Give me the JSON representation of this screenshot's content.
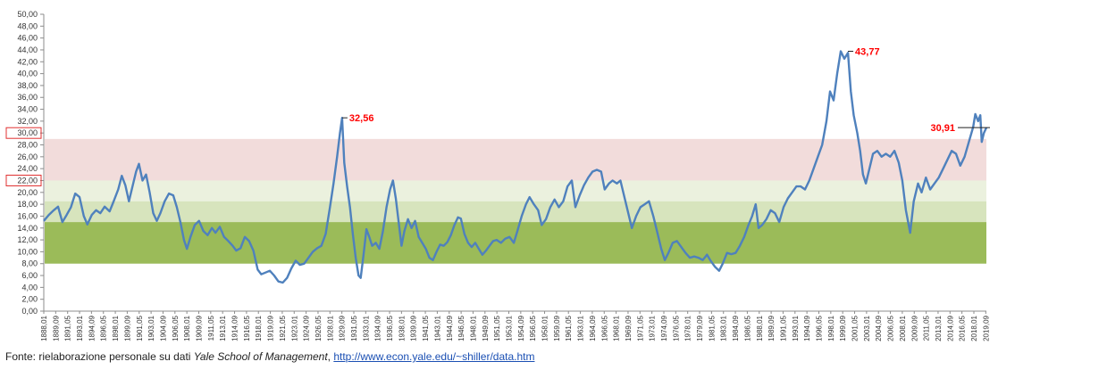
{
  "chart_data": {
    "type": "line",
    "title": "",
    "xlabel": "",
    "ylabel": "",
    "ylim": [
      0,
      50
    ],
    "y_ticks": [
      "0,00",
      "2,00",
      "4,00",
      "6,00",
      "8,00",
      "10,00",
      "12,00",
      "14,00",
      "16,00",
      "18,00",
      "20,00",
      "22,00",
      "24,00",
      "26,00",
      "28,00",
      "30,00",
      "32,00",
      "34,00",
      "36,00",
      "38,00",
      "40,00",
      "42,00",
      "44,00",
      "46,00",
      "48,00",
      "50,00"
    ],
    "boxed_ticks": [
      "30,00",
      "22,00"
    ],
    "x_ticks": [
      "1888,01",
      "1889,09",
      "1891,05",
      "1893,01",
      "1894,09",
      "1896,05",
      "1898,01",
      "1899,09",
      "1901,05",
      "1903,01",
      "1904,09",
      "1906,05",
      "1908,01",
      "1909,09",
      "1911,05",
      "1913,01",
      "1914,09",
      "1916,05",
      "1918,01",
      "1919,09",
      "1921,05",
      "1923,01",
      "1924,09",
      "1926,05",
      "1928,01",
      "1929,09",
      "1931,05",
      "1933,01",
      "1934,09",
      "1936,05",
      "1938,01",
      "1939,09",
      "1941,05",
      "1943,01",
      "1944,09",
      "1946,05",
      "1948,01",
      "1949,09",
      "1951,05",
      "1953,01",
      "1954,09",
      "1956,05",
      "1958,01",
      "1959,09",
      "1961,05",
      "1963,01",
      "1964,09",
      "1966,05",
      "1968,01",
      "1969,09",
      "1971,05",
      "1973,01",
      "1974,09",
      "1976,05",
      "1978,01",
      "1979,09",
      "1981,05",
      "1983,01",
      "1984,09",
      "1986,05",
      "1988,01",
      "1989,09",
      "1991,05",
      "1993,01",
      "1994,09",
      "1996,05",
      "1998,01",
      "1999,09",
      "2001,05",
      "2003,01",
      "2004,09",
      "2006,05",
      "2008,01",
      "2009,09",
      "2011,05",
      "2013,01",
      "2014,09",
      "2016,05",
      "2018,01",
      "2019,09"
    ],
    "xlim": [
      1888.0,
      2019.75
    ],
    "bands": [
      {
        "from": 22,
        "to": 29,
        "color": "#f2dcdb"
      },
      {
        "from": 18.5,
        "to": 22,
        "color": "#ebf1de"
      },
      {
        "from": 15,
        "to": 18.5,
        "color": "#d7e4bd"
      },
      {
        "from": 8,
        "to": 15,
        "color": "#9bbb59"
      }
    ],
    "series": [
      {
        "color": "#4f81bd",
        "points": [
          [
            1888.0,
            15.2
          ],
          [
            1888.7,
            16.2
          ],
          [
            1889.4,
            17.0
          ],
          [
            1890.0,
            17.6
          ],
          [
            1890.6,
            15.0
          ],
          [
            1891.2,
            16.2
          ],
          [
            1891.8,
            17.5
          ],
          [
            1892.4,
            19.8
          ],
          [
            1893.0,
            19.2
          ],
          [
            1893.6,
            16.0
          ],
          [
            1894.1,
            14.6
          ],
          [
            1894.7,
            16.2
          ],
          [
            1895.3,
            17.0
          ],
          [
            1895.9,
            16.5
          ],
          [
            1896.5,
            17.6
          ],
          [
            1897.2,
            16.8
          ],
          [
            1897.8,
            18.6
          ],
          [
            1898.4,
            20.5
          ],
          [
            1898.9,
            22.8
          ],
          [
            1899.4,
            21.2
          ],
          [
            1899.9,
            18.5
          ],
          [
            1900.4,
            21.0
          ],
          [
            1900.9,
            23.5
          ],
          [
            1901.3,
            24.8
          ],
          [
            1901.8,
            22.0
          ],
          [
            1902.3,
            23.0
          ],
          [
            1902.8,
            20.0
          ],
          [
            1903.3,
            16.5
          ],
          [
            1903.8,
            15.2
          ],
          [
            1904.3,
            16.5
          ],
          [
            1904.9,
            18.5
          ],
          [
            1905.5,
            19.8
          ],
          [
            1906.1,
            19.5
          ],
          [
            1906.6,
            17.5
          ],
          [
            1907.1,
            15.0
          ],
          [
            1907.6,
            12.0
          ],
          [
            1908.0,
            10.5
          ],
          [
            1908.5,
            12.5
          ],
          [
            1909.1,
            14.5
          ],
          [
            1909.7,
            15.2
          ],
          [
            1910.3,
            13.5
          ],
          [
            1910.9,
            12.8
          ],
          [
            1911.5,
            14.0
          ],
          [
            1912.0,
            13.2
          ],
          [
            1912.6,
            14.2
          ],
          [
            1913.2,
            12.5
          ],
          [
            1913.8,
            11.8
          ],
          [
            1914.4,
            11.0
          ],
          [
            1914.9,
            10.2
          ],
          [
            1915.5,
            10.6
          ],
          [
            1916.1,
            12.5
          ],
          [
            1916.7,
            11.8
          ],
          [
            1917.3,
            10.2
          ],
          [
            1917.9,
            7.0
          ],
          [
            1918.4,
            6.2
          ],
          [
            1919.0,
            6.5
          ],
          [
            1919.6,
            6.8
          ],
          [
            1920.2,
            6.0
          ],
          [
            1920.8,
            5.0
          ],
          [
            1921.4,
            4.8
          ],
          [
            1922.0,
            5.6
          ],
          [
            1922.6,
            7.2
          ],
          [
            1923.2,
            8.5
          ],
          [
            1923.8,
            7.8
          ],
          [
            1924.4,
            8.0
          ],
          [
            1925.0,
            9.0
          ],
          [
            1925.6,
            10.0
          ],
          [
            1926.2,
            10.6
          ],
          [
            1926.8,
            11.0
          ],
          [
            1927.4,
            13.0
          ],
          [
            1928.0,
            17.5
          ],
          [
            1928.5,
            21.5
          ],
          [
            1929.0,
            26.0
          ],
          [
            1929.4,
            30.0
          ],
          [
            1929.7,
            32.56
          ],
          [
            1930.0,
            25.0
          ],
          [
            1930.4,
            21.0
          ],
          [
            1930.8,
            17.5
          ],
          [
            1931.2,
            13.0
          ],
          [
            1931.6,
            9.0
          ],
          [
            1932.0,
            6.0
          ],
          [
            1932.3,
            5.6
          ],
          [
            1932.7,
            9.5
          ],
          [
            1933.1,
            13.8
          ],
          [
            1933.5,
            12.5
          ],
          [
            1933.9,
            11.0
          ],
          [
            1934.4,
            11.5
          ],
          [
            1934.9,
            10.5
          ],
          [
            1935.4,
            13.5
          ],
          [
            1935.9,
            17.5
          ],
          [
            1936.4,
            20.5
          ],
          [
            1936.8,
            22.0
          ],
          [
            1937.2,
            19.0
          ],
          [
            1937.6,
            15.0
          ],
          [
            1938.0,
            11.0
          ],
          [
            1938.4,
            13.5
          ],
          [
            1938.9,
            15.5
          ],
          [
            1939.4,
            14.0
          ],
          [
            1939.9,
            15.2
          ],
          [
            1940.4,
            12.5
          ],
          [
            1940.9,
            11.5
          ],
          [
            1941.4,
            10.5
          ],
          [
            1941.9,
            9.0
          ],
          [
            1942.4,
            8.6
          ],
          [
            1942.9,
            10.0
          ],
          [
            1943.4,
            11.2
          ],
          [
            1943.9,
            11.0
          ],
          [
            1944.4,
            11.6
          ],
          [
            1944.9,
            12.8
          ],
          [
            1945.4,
            14.5
          ],
          [
            1945.9,
            15.8
          ],
          [
            1946.3,
            15.6
          ],
          [
            1946.8,
            13.0
          ],
          [
            1947.3,
            11.5
          ],
          [
            1947.8,
            10.8
          ],
          [
            1948.3,
            11.5
          ],
          [
            1948.8,
            10.5
          ],
          [
            1949.3,
            9.5
          ],
          [
            1949.8,
            10.2
          ],
          [
            1950.3,
            11.0
          ],
          [
            1950.8,
            11.8
          ],
          [
            1951.3,
            12.0
          ],
          [
            1951.9,
            11.5
          ],
          [
            1952.5,
            12.2
          ],
          [
            1953.1,
            12.5
          ],
          [
            1953.7,
            11.5
          ],
          [
            1954.2,
            13.5
          ],
          [
            1954.8,
            16.0
          ],
          [
            1955.4,
            18.0
          ],
          [
            1955.9,
            19.2
          ],
          [
            1956.5,
            18.0
          ],
          [
            1957.1,
            17.0
          ],
          [
            1957.6,
            14.5
          ],
          [
            1958.2,
            15.5
          ],
          [
            1958.8,
            17.5
          ],
          [
            1959.4,
            18.8
          ],
          [
            1960.0,
            17.5
          ],
          [
            1960.6,
            18.5
          ],
          [
            1961.2,
            21.0
          ],
          [
            1961.8,
            22.0
          ],
          [
            1962.3,
            17.5
          ],
          [
            1962.9,
            19.5
          ],
          [
            1963.5,
            21.2
          ],
          [
            1964.1,
            22.5
          ],
          [
            1964.7,
            23.5
          ],
          [
            1965.3,
            23.8
          ],
          [
            1965.9,
            23.5
          ],
          [
            1966.4,
            20.5
          ],
          [
            1967.0,
            21.5
          ],
          [
            1967.5,
            22.0
          ],
          [
            1968.1,
            21.5
          ],
          [
            1968.6,
            22.0
          ],
          [
            1969.2,
            19.0
          ],
          [
            1969.7,
            16.5
          ],
          [
            1970.2,
            14.0
          ],
          [
            1970.8,
            16.0
          ],
          [
            1971.4,
            17.5
          ],
          [
            1972.0,
            18.0
          ],
          [
            1972.6,
            18.5
          ],
          [
            1973.2,
            16.0
          ],
          [
            1973.8,
            13.0
          ],
          [
            1974.3,
            10.5
          ],
          [
            1974.8,
            8.6
          ],
          [
            1975.3,
            9.8
          ],
          [
            1975.9,
            11.5
          ],
          [
            1976.5,
            11.8
          ],
          [
            1977.1,
            10.8
          ],
          [
            1977.7,
            9.8
          ],
          [
            1978.3,
            9.0
          ],
          [
            1978.9,
            9.2
          ],
          [
            1979.5,
            9.0
          ],
          [
            1980.1,
            8.6
          ],
          [
            1980.7,
            9.5
          ],
          [
            1981.2,
            8.5
          ],
          [
            1981.8,
            7.5
          ],
          [
            1982.4,
            6.8
          ],
          [
            1982.9,
            8.0
          ],
          [
            1983.5,
            9.8
          ],
          [
            1984.1,
            9.6
          ],
          [
            1984.7,
            9.8
          ],
          [
            1985.3,
            11.0
          ],
          [
            1985.9,
            12.5
          ],
          [
            1986.5,
            14.5
          ],
          [
            1987.0,
            16.0
          ],
          [
            1987.5,
            18.0
          ],
          [
            1987.9,
            14.0
          ],
          [
            1988.4,
            14.5
          ],
          [
            1989.0,
            15.5
          ],
          [
            1989.6,
            17.0
          ],
          [
            1990.2,
            16.5
          ],
          [
            1990.8,
            15.0
          ],
          [
            1991.4,
            17.5
          ],
          [
            1992.0,
            19.0
          ],
          [
            1992.6,
            20.0
          ],
          [
            1993.2,
            21.0
          ],
          [
            1993.8,
            21.0
          ],
          [
            1994.4,
            20.5
          ],
          [
            1995.0,
            22.0
          ],
          [
            1995.6,
            24.0
          ],
          [
            1996.2,
            26.0
          ],
          [
            1996.8,
            28.0
          ],
          [
            1997.4,
            32.0
          ],
          [
            1997.9,
            37.0
          ],
          [
            1998.4,
            35.5
          ],
          [
            1998.9,
            40.0
          ],
          [
            1999.4,
            43.77
          ],
          [
            1999.9,
            42.5
          ],
          [
            2000.4,
            43.5
          ],
          [
            2000.8,
            37.0
          ],
          [
            2001.2,
            33.0
          ],
          [
            2001.7,
            30.0
          ],
          [
            2002.1,
            27.0
          ],
          [
            2002.5,
            23.0
          ],
          [
            2002.9,
            21.5
          ],
          [
            2003.4,
            24.0
          ],
          [
            2003.9,
            26.5
          ],
          [
            2004.5,
            27.0
          ],
          [
            2005.1,
            26.0
          ],
          [
            2005.7,
            26.5
          ],
          [
            2006.3,
            26.0
          ],
          [
            2006.9,
            27.0
          ],
          [
            2007.5,
            25.0
          ],
          [
            2008.0,
            22.0
          ],
          [
            2008.5,
            17.0
          ],
          [
            2009.1,
            13.2
          ],
          [
            2009.6,
            18.5
          ],
          [
            2010.2,
            21.5
          ],
          [
            2010.7,
            20.0
          ],
          [
            2011.3,
            22.5
          ],
          [
            2011.9,
            20.5
          ],
          [
            2012.5,
            21.5
          ],
          [
            2013.1,
            22.5
          ],
          [
            2013.7,
            24.0
          ],
          [
            2014.3,
            25.5
          ],
          [
            2014.9,
            27.0
          ],
          [
            2015.5,
            26.5
          ],
          [
            2016.1,
            24.5
          ],
          [
            2016.7,
            26.0
          ],
          [
            2017.3,
            28.5
          ],
          [
            2017.9,
            31.0
          ],
          [
            2018.2,
            33.2
          ],
          [
            2018.6,
            32.0
          ],
          [
            2018.9,
            33.0
          ],
          [
            2019.1,
            28.5
          ],
          [
            2019.4,
            30.0
          ],
          [
            2019.75,
            30.91
          ]
        ]
      }
    ],
    "annotations": [
      {
        "label": "32,56",
        "x": 1929.7,
        "y": 32.56,
        "color": "#ff0000"
      },
      {
        "label": "43,77",
        "x": 2000.4,
        "y": 43.77,
        "color": "#ff0000"
      },
      {
        "label": "30,91",
        "x": 2019.75,
        "y": 30.91,
        "color": "#ff0000"
      }
    ],
    "grid": false,
    "legend": "none"
  },
  "source": {
    "prefix": "Fonte: rielaborazione personale su dati ",
    "institution": "Yale School of Management",
    "separator": ", ",
    "link": "http://www.econ.yale.edu/~shiller/data.htm"
  }
}
